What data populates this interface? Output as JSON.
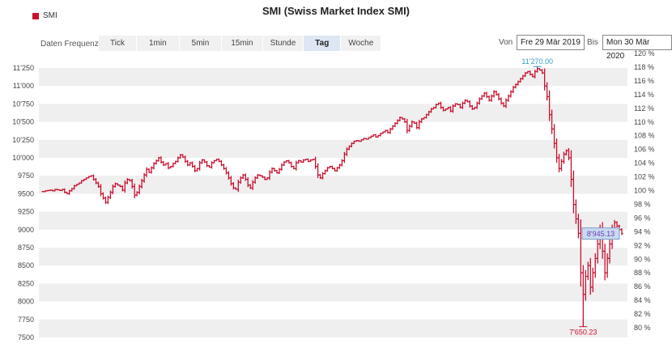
{
  "title": "SMI (Swiss Market Index SMI)",
  "legend": {
    "label": "SMI",
    "color": "#c8102e"
  },
  "controls": {
    "freq_label": "Daten Frequenz",
    "freq_tabs": [
      "Tick",
      "1min",
      "5min",
      "15min",
      "Stunde",
      "Tag",
      "Woche"
    ],
    "active_tab": "Tag",
    "from_label": "Von",
    "from_value": "Fre 29 Mär 2019",
    "to_label": "Bis",
    "to_value": "Mon 30 Mär 2020"
  },
  "chart_data": {
    "type": "bar",
    "series_name": "SMI",
    "bar_style": "OHLC",
    "bar_color": "#c8102e",
    "grid": "horizontal bands",
    "x_range": [
      "2019-03-29",
      "2020-03-30"
    ],
    "ylim": [
      7500,
      11250
    ],
    "y_ticks": [
      "7500",
      "7750",
      "8000",
      "8250",
      "8500",
      "8750",
      "9000",
      "9250",
      "9500",
      "9750",
      "10'000",
      "10'250",
      "10'500",
      "10'750",
      "11'000",
      "11'250"
    ],
    "y2_ticks": [
      "80 %",
      "82 %",
      "84 %",
      "86 %",
      "88 %",
      "90 %",
      "92 %",
      "94 %",
      "96 %",
      "98 %",
      "100 %",
      "102 %",
      "104 %",
      "106 %",
      "108 %",
      "110 %",
      "112 %",
      "114 %",
      "116 %",
      "118 %",
      "120 %"
    ],
    "y2_range_pct": [
      80,
      120
    ],
    "annotations": {
      "high": {
        "label": "11'270.00",
        "value": 11270,
        "color": "#3399cc"
      },
      "low": {
        "label": "7'650.23",
        "value": 7650.23,
        "color": "#c8102e"
      },
      "last": {
        "label": "8'945.13",
        "value": 8945.13,
        "color": "#6a3fb5"
      }
    },
    "closes": [
      9530,
      9540,
      9545,
      9550,
      9540,
      9560,
      9555,
      9545,
      9560,
      9520,
      9500,
      9540,
      9570,
      9610,
      9630,
      9650,
      9680,
      9700,
      9720,
      9740,
      9750,
      9700,
      9650,
      9600,
      9500,
      9440,
      9380,
      9450,
      9520,
      9600,
      9640,
      9620,
      9600,
      9550,
      9650,
      9700,
      9680,
      9600,
      9480,
      9520,
      9600,
      9680,
      9760,
      9840,
      9800,
      9860,
      9920,
      9960,
      10000,
      9940,
      9900,
      9920,
      9860,
      9880,
      9920,
      9950,
      10000,
      10040,
      10010,
      9950,
      9900,
      9930,
      9880,
      9820,
      9850,
      9930,
      9970,
      9940,
      9890,
      9870,
      9930,
      9960,
      9980,
      9950,
      9900,
      9850,
      9790,
      9720,
      9640,
      9580,
      9560,
      9660,
      9720,
      9760,
      9700,
      9620,
      9580,
      9660,
      9720,
      9760,
      9750,
      9730,
      9700,
      9720,
      9800,
      9850,
      9820,
      9790,
      9840,
      9900,
      9940,
      9960,
      9930,
      9880,
      9850,
      9930,
      9960,
      9940,
      9970,
      9980,
      9950,
      9970,
      9980,
      9880,
      9760,
      9720,
      9780,
      9820,
      9860,
      9880,
      9850,
      9820,
      9860,
      9900,
      9960,
      10050,
      10120,
      10160,
      10200,
      10230,
      10240,
      10230,
      10250,
      10270,
      10260,
      10280,
      10300,
      10320,
      10290,
      10310,
      10340,
      10360,
      10380,
      10350,
      10400,
      10440,
      10480,
      10520,
      10560,
      10540,
      10500,
      10380,
      10440,
      10500,
      10480,
      10420,
      10500,
      10540,
      10560,
      10600,
      10640,
      10680,
      10700,
      10740,
      10760,
      10700,
      10660,
      10680,
      10700,
      10650,
      10720,
      10750,
      10740,
      10700,
      10760,
      10800,
      10780,
      10720,
      10680,
      10700,
      10760,
      10820,
      10860,
      10900,
      10850,
      10800,
      10860,
      10920,
      10880,
      10820,
      10760,
      10720,
      10800,
      10860,
      10920,
      10980,
      11020,
      11060,
      11100,
      11140,
      11180,
      11200,
      11160,
      11130,
      11200,
      11240,
      11220,
      11180,
      11000,
      10850,
      10600,
      10400,
      10200,
      10000,
      9850,
      9950,
      10050,
      10100,
      10000,
      9700,
      9350,
      9150,
      8950,
      8400,
      8100,
      8350,
      8500,
      8200,
      8400,
      8600,
      8800,
      9000,
      8700,
      8400,
      8600,
      8800,
      9000,
      9100,
      9050,
      9000,
      8945.13
    ]
  }
}
